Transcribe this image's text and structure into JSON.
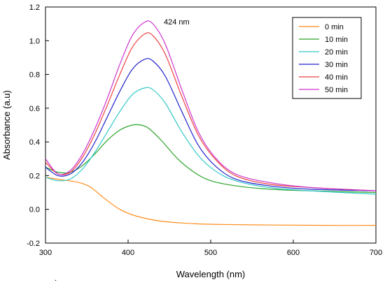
{
  "chart_data": {
    "type": "line",
    "xlabel": "Wavelength (nm)",
    "ylabel": "Absorbance (a.u)",
    "xlim": [
      300,
      700
    ],
    "ylim": [
      -0.2,
      1.2
    ],
    "x_ticks": [
      300,
      400,
      500,
      600,
      700
    ],
    "y_ticks": [
      "-0.2",
      "0.0",
      "0.2",
      "0.4",
      "0.6",
      "0.8",
      "1.0",
      "1.2"
    ],
    "grid": false,
    "legend_position": "top-right",
    "annotation": {
      "text": "424 nm",
      "x": 424,
      "y": 1.14
    },
    "stray_text": ".",
    "series": [
      {
        "name": "0 min",
        "color": "#ff8c1a",
        "x": [
          300,
          320,
          340,
          355,
          370,
          390,
          410,
          440,
          480,
          520,
          580,
          640,
          700
        ],
        "y": [
          0.19,
          0.175,
          0.16,
          0.13,
          0.07,
          0.0,
          -0.04,
          -0.07,
          -0.085,
          -0.09,
          -0.093,
          -0.095,
          -0.095
        ]
      },
      {
        "name": "10 min",
        "color": "#2aa52a",
        "x": [
          300,
          315,
          330,
          345,
          360,
          375,
          390,
          405,
          415,
          425,
          440,
          460,
          480,
          500,
          530,
          570,
          620,
          700
        ],
        "y": [
          0.25,
          0.22,
          0.22,
          0.26,
          0.33,
          0.41,
          0.47,
          0.5,
          0.5,
          0.48,
          0.41,
          0.3,
          0.22,
          0.17,
          0.14,
          0.12,
          0.11,
          0.1
        ]
      },
      {
        "name": "20 min",
        "color": "#33c8c8",
        "x": [
          300,
          315,
          330,
          345,
          360,
          375,
          390,
          405,
          420,
          430,
          445,
          465,
          485,
          505,
          530,
          570,
          620,
          700
        ],
        "y": [
          0.19,
          0.17,
          0.18,
          0.24,
          0.34,
          0.46,
          0.58,
          0.68,
          0.72,
          0.71,
          0.63,
          0.46,
          0.32,
          0.23,
          0.17,
          0.13,
          0.11,
          0.09
        ]
      },
      {
        "name": "30 min",
        "color": "#2222cc",
        "x": [
          300,
          315,
          330,
          345,
          360,
          375,
          390,
          405,
          420,
          430,
          445,
          465,
          485,
          505,
          530,
          570,
          620,
          700
        ],
        "y": [
          0.25,
          0.2,
          0.21,
          0.28,
          0.4,
          0.55,
          0.7,
          0.83,
          0.89,
          0.88,
          0.79,
          0.58,
          0.38,
          0.26,
          0.18,
          0.14,
          0.12,
          0.11
        ]
      },
      {
        "name": "40 min",
        "color": "#ee4040",
        "x": [
          300,
          315,
          330,
          345,
          360,
          375,
          390,
          405,
          420,
          430,
          445,
          465,
          485,
          505,
          530,
          570,
          620,
          700
        ],
        "y": [
          0.28,
          0.21,
          0.22,
          0.31,
          0.45,
          0.62,
          0.8,
          0.96,
          1.04,
          1.03,
          0.92,
          0.67,
          0.44,
          0.3,
          0.2,
          0.15,
          0.13,
          0.11
        ]
      },
      {
        "name": "50 min",
        "color": "#cc33cc",
        "x": [
          300,
          315,
          330,
          345,
          360,
          375,
          390,
          405,
          420,
          430,
          445,
          465,
          485,
          505,
          530,
          570,
          620,
          700
        ],
        "y": [
          0.3,
          0.21,
          0.23,
          0.33,
          0.48,
          0.66,
          0.86,
          1.03,
          1.11,
          1.1,
          0.98,
          0.71,
          0.46,
          0.31,
          0.21,
          0.16,
          0.13,
          0.11
        ]
      }
    ]
  }
}
